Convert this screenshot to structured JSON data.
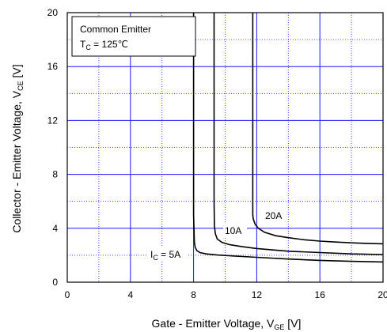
{
  "chart_data": {
    "type": "line",
    "xlabel_main": "Gate - Emitter Voltage, V",
    "xlabel_sub": "GE",
    "xlabel_unit": " [V]",
    "ylabel_main": "Collector - Emitter Voltage, V",
    "ylabel_sub": "CE",
    "ylabel_unit": " [V]",
    "xlim": [
      0,
      20
    ],
    "ylim": [
      0,
      20
    ],
    "xticks": [
      0,
      4,
      8,
      12,
      16,
      20
    ],
    "yticks": [
      0,
      4,
      8,
      12,
      16,
      20
    ],
    "xtick_labels": [
      "0",
      "4",
      "8",
      "12",
      "16",
      "20"
    ],
    "ytick_labels": [
      "0",
      "4",
      "8",
      "12",
      "16",
      "20"
    ],
    "grid": true,
    "grid_color": "#1a1aff",
    "legend": {
      "line1": "Common Emitter",
      "line2_main": "T",
      "line2_sub": "C",
      "line2_rest": " = 125℃",
      "placement": "top-left"
    },
    "annotations": {
      "ic5_main": "I",
      "ic5_sub": "C",
      "ic5_rest": " = 5A",
      "ic10": "10A",
      "ic20": "20A"
    },
    "series": [
      {
        "label_key": "ic5",
        "x": [
          8.0,
          8.0,
          8.05,
          8.1,
          8.2,
          8.4,
          8.8,
          9.5,
          10.5,
          12,
          14,
          16,
          18,
          20
        ],
        "y": [
          20,
          5.0,
          3.0,
          2.6,
          2.35,
          2.2,
          2.1,
          2.02,
          1.95,
          1.85,
          1.72,
          1.62,
          1.55,
          1.5
        ]
      },
      {
        "label_key": "ic10",
        "x": [
          9.3,
          9.3,
          9.32,
          9.38,
          9.5,
          9.8,
          10.3,
          11,
          12,
          14,
          16,
          18,
          20
        ],
        "y": [
          20,
          6.0,
          4.2,
          3.6,
          3.2,
          2.95,
          2.78,
          2.65,
          2.5,
          2.3,
          2.2,
          2.1,
          2.05
        ]
      },
      {
        "label_key": "ic20",
        "x": [
          11.75,
          11.75,
          11.78,
          11.9,
          12.1,
          12.5,
          13.2,
          14,
          15,
          16,
          17,
          18,
          19,
          20
        ],
        "y": [
          20,
          5.0,
          4.7,
          4.3,
          4.0,
          3.7,
          3.45,
          3.3,
          3.15,
          3.05,
          2.98,
          2.92,
          2.88,
          2.85
        ]
      }
    ]
  }
}
